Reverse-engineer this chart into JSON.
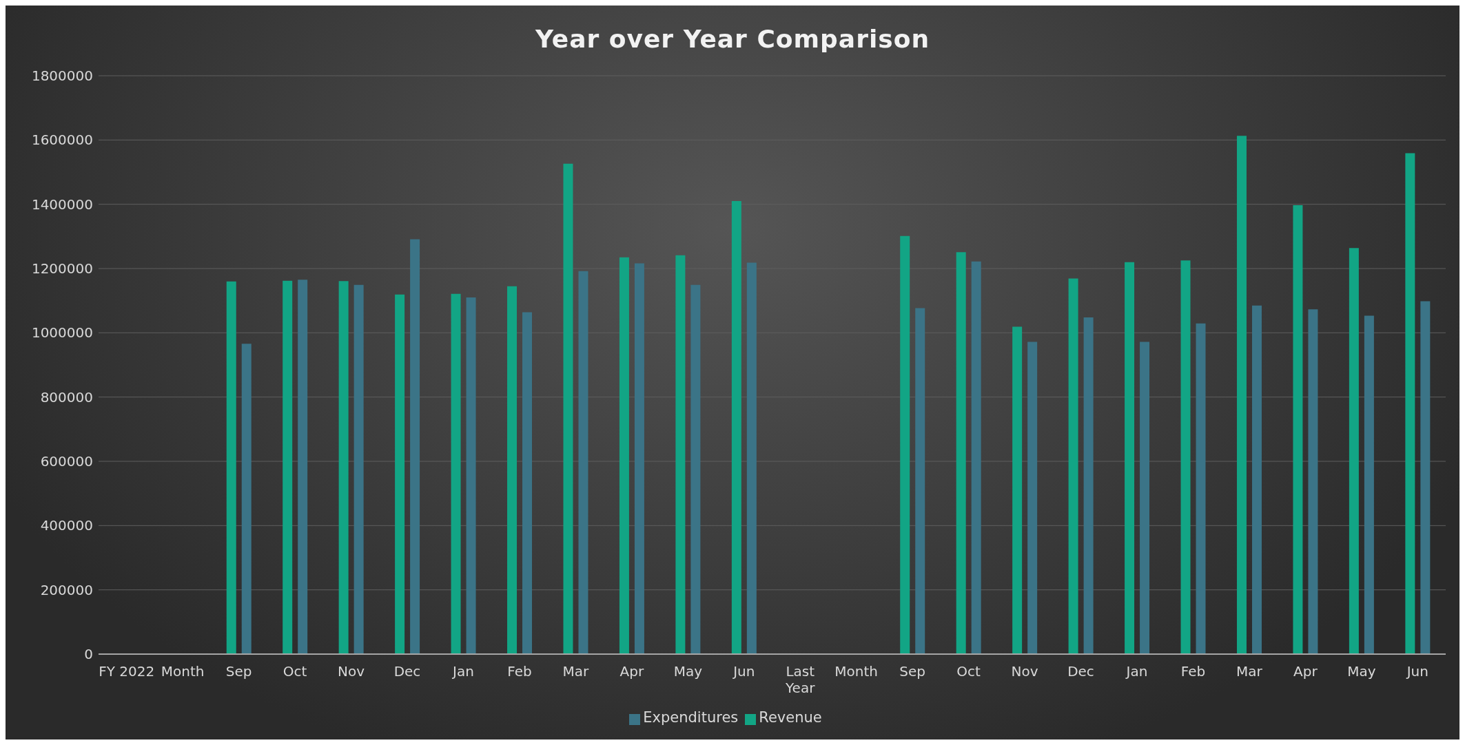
{
  "chart_data": {
    "type": "bar",
    "title": "Year over Year Comparison",
    "categories": [
      "FY 2022",
      "Month",
      "Sep",
      "Oct",
      "Nov",
      "Dec",
      "Jan",
      "Feb",
      "Mar",
      "Apr",
      "May",
      "Jun",
      "Last\nYear",
      "Month",
      "Sep",
      "Oct",
      "Nov",
      "Dec",
      "Jan",
      "Feb",
      "Mar",
      "Apr",
      "May",
      "Jun"
    ],
    "series": [
      {
        "name": "Revenue",
        "color": "#12a585",
        "values": [
          null,
          null,
          1160000,
          1162000,
          1161000,
          1119000,
          1121000,
          1145000,
          1526000,
          1235000,
          1241000,
          1410000,
          null,
          null,
          1301000,
          1251000,
          1019000,
          1169000,
          1220000,
          1225000,
          1613000,
          1397000,
          1264000,
          1559000
        ]
      },
      {
        "name": "Expenditures",
        "color": "#3b7487",
        "values": [
          null,
          null,
          966000,
          1165000,
          1149000,
          1291000,
          1110000,
          1064000,
          1192000,
          1216000,
          1149000,
          1218000,
          null,
          null,
          1077000,
          1222000,
          972000,
          1048000,
          972000,
          1029000,
          1085000,
          1073000,
          1053000,
          1098000
        ]
      }
    ],
    "ylim": [
      0,
      1800000
    ],
    "yticks": [
      0,
      200000,
      400000,
      600000,
      800000,
      1000000,
      1200000,
      1400000,
      1600000,
      1800000
    ],
    "grid": "y",
    "legend": "bottom"
  }
}
